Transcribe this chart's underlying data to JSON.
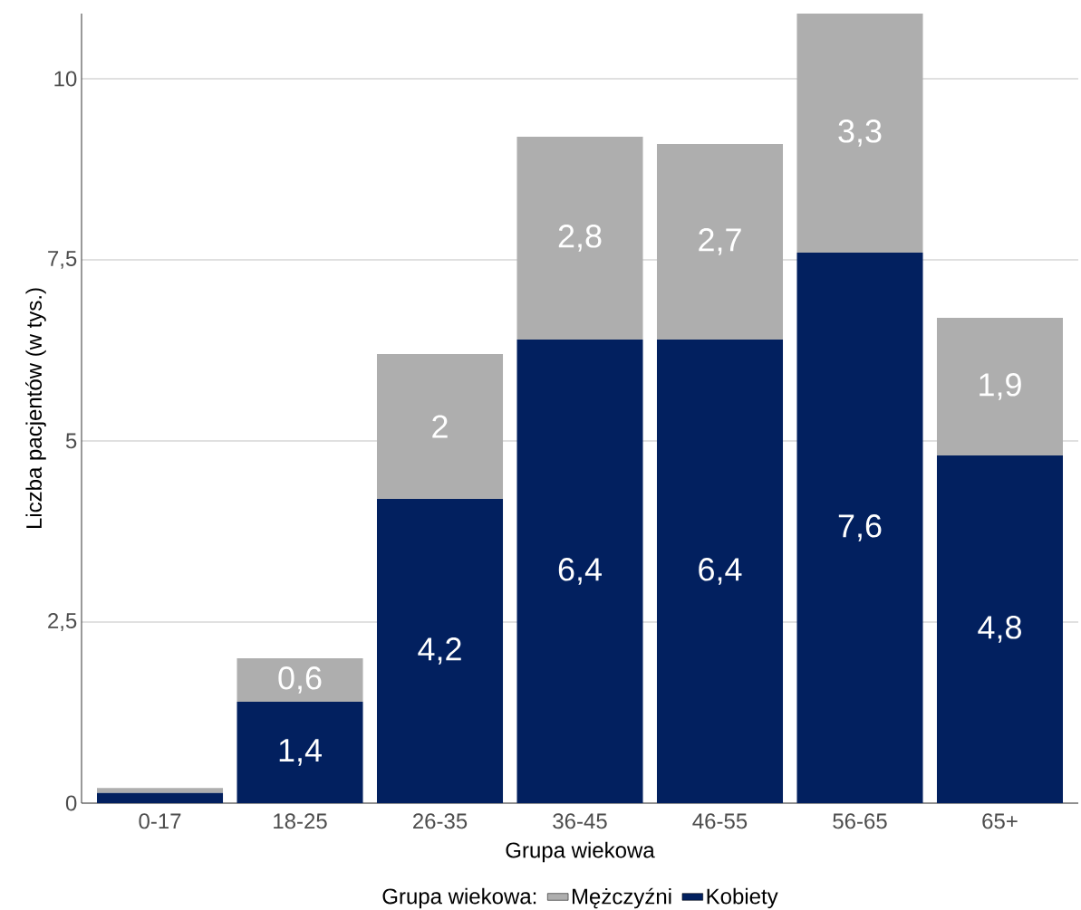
{
  "chart_data": {
    "type": "bar",
    "stacked": true,
    "xlabel": "Grupa wiekowa",
    "ylabel": "Liczba pacjentów (w tys.)",
    "legend_title": "Grupa wiekowa:",
    "categories": [
      "0-17",
      "18-25",
      "26-35",
      "36-45",
      "46-55",
      "56-65",
      "65+"
    ],
    "series": [
      {
        "name": "Kobiety",
        "color": "#02205f",
        "values": [
          0.14,
          1.4,
          4.2,
          6.4,
          6.4,
          7.6,
          4.8
        ],
        "value_labels": [
          null,
          "1,4",
          "4,2",
          "6,4",
          "6,4",
          "7,6",
          "4,8"
        ]
      },
      {
        "name": "Mężczyźni",
        "color": "#aeaeae",
        "values": [
          0.07,
          0.6,
          2,
          2.8,
          2.7,
          3.3,
          1.9
        ],
        "value_labels": [
          null,
          "0,6",
          "2",
          "2,8",
          "2,7",
          "3,3",
          "1,9"
        ]
      }
    ],
    "ylim": [
      0,
      10.9
    ],
    "yticks": [
      0,
      {
        "value": 2.5,
        "label": "2,5"
      },
      5,
      {
        "value": 7.5,
        "label": "7,5"
      },
      10
    ],
    "grid": "y",
    "legend": "bottom"
  }
}
